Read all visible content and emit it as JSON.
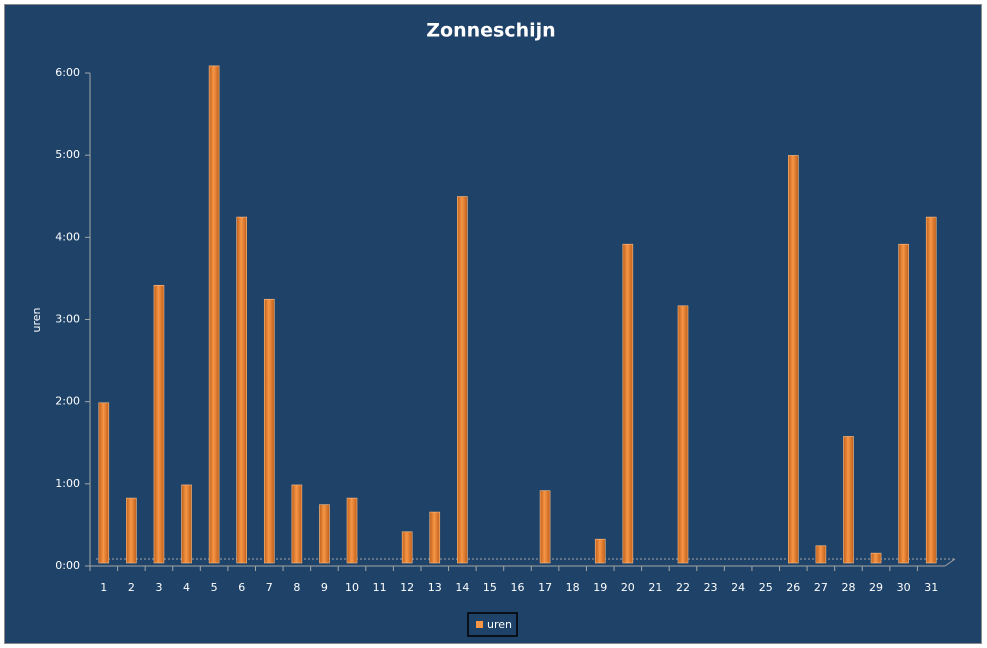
{
  "chart_data": {
    "type": "bar",
    "title": "Zonneschijn",
    "y_label": "uren",
    "categories": [
      "1",
      "2",
      "3",
      "4",
      "5",
      "6",
      "7",
      "8",
      "9",
      "10",
      "11",
      "12",
      "13",
      "14",
      "15",
      "16",
      "17",
      "18",
      "19",
      "20",
      "21",
      "22",
      "23",
      "24",
      "25",
      "26",
      "27",
      "28",
      "29",
      "30",
      "31"
    ],
    "series": [
      {
        "name": "uren",
        "color": "#f79646",
        "values": [
          1.95,
          0.79,
          3.38,
          0.95,
          6.05,
          4.21,
          3.21,
          0.95,
          0.71,
          0.79,
          0,
          0.38,
          0.62,
          4.46,
          0,
          0,
          0.88,
          0,
          0.29,
          3.88,
          0,
          3.13,
          0,
          0,
          0,
          4.96,
          0.21,
          1.54,
          0.12,
          3.88,
          4.21
        ]
      }
    ],
    "ylim": [
      0,
      6
    ],
    "yticks": [
      {
        "value": 0,
        "label": "0:00"
      },
      {
        "value": 1,
        "label": "1:00"
      },
      {
        "value": 2,
        "label": "2:00"
      },
      {
        "value": 3,
        "label": "3:00"
      },
      {
        "value": 4,
        "label": "4:00"
      },
      {
        "value": 5,
        "label": "5:00"
      },
      {
        "value": 6,
        "label": "6:00"
      }
    ],
    "grid": false,
    "legend": "bottom"
  }
}
